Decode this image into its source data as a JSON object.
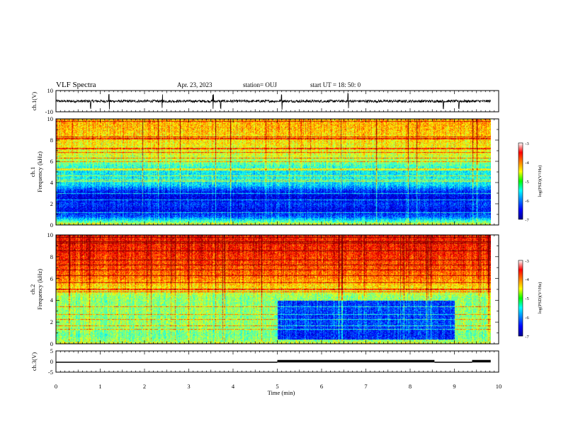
{
  "header": {
    "title": "VLF Spectra",
    "date": "Apr. 23, 2023",
    "station": "station= OUJ",
    "start": "start UT =  18: 50: 0"
  },
  "chart_data": [
    {
      "type": "line",
      "panel": "ch1-waveform",
      "ylabel": "ch.1(V)",
      "ylim": [
        -10,
        10
      ],
      "yticks": [
        "10",
        "-10"
      ],
      "xlim": [
        0,
        10
      ],
      "baseline": 0,
      "noise_amplitude": 1.2,
      "spikes_x": [
        0.78,
        1.2,
        2.4,
        3.55,
        3.72,
        5.1,
        6.6,
        8.75,
        9.1
      ]
    },
    {
      "type": "heatmap",
      "panel": "ch1-spectrogram",
      "ylabel": "ch.1\nFrequency (kHz)",
      "ylim": [
        0,
        10
      ],
      "yticks": [
        "0",
        "2",
        "4",
        "6",
        "8",
        "10"
      ],
      "xlim": [
        0,
        10
      ],
      "value_label": "log(PSD)(V²/Hz)",
      "value_range": [
        -7,
        -3
      ],
      "colorbar_ticks": [
        "-3",
        "-4",
        "-5",
        "-6",
        "-7"
      ],
      "band_levels": [
        {
          "f": 0.2,
          "v": -5.0
        },
        {
          "f": 0.8,
          "v": -6.3
        },
        {
          "f": 1.4,
          "v": -6.8
        },
        {
          "f": 2.0,
          "v": -6.5
        },
        {
          "f": 2.6,
          "v": -6.9
        },
        {
          "f": 3.2,
          "v": -6.6
        },
        {
          "f": 3.8,
          "v": -5.8
        },
        {
          "f": 4.4,
          "v": -5.6
        },
        {
          "f": 5.0,
          "v": -5.7
        },
        {
          "f": 5.6,
          "v": -5.4
        },
        {
          "f": 6.2,
          "v": -4.9
        },
        {
          "f": 6.8,
          "v": -4.7
        },
        {
          "f": 7.4,
          "v": -4.6
        },
        {
          "f": 8.0,
          "v": -4.5
        },
        {
          "f": 8.6,
          "v": -4.4
        },
        {
          "f": 9.2,
          "v": -4.3
        },
        {
          "f": 9.8,
          "v": -4.3
        }
      ]
    },
    {
      "type": "heatmap",
      "panel": "ch2-spectrogram",
      "ylabel": "ch.2\nFrequency (kHz)",
      "ylim": [
        0,
        10
      ],
      "yticks": [
        "0",
        "2",
        "4",
        "6",
        "8",
        "10"
      ],
      "xlim": [
        0,
        10
      ],
      "value_label": "log(PSD)(V²/Hz)",
      "value_range": [
        -7,
        -3
      ],
      "colorbar_ticks": [
        "-3",
        "-4",
        "-5",
        "-6",
        "-7"
      ],
      "band_levels": [
        {
          "f": 0.2,
          "v": -5.0
        },
        {
          "f": 0.8,
          "v": -5.2
        },
        {
          "f": 1.4,
          "v": -5.1
        },
        {
          "f": 2.0,
          "v": -5.0
        },
        {
          "f": 2.6,
          "v": -5.1
        },
        {
          "f": 3.2,
          "v": -5.0
        },
        {
          "f": 3.8,
          "v": -5.1
        },
        {
          "f": 4.4,
          "v": -5.0
        },
        {
          "f": 5.0,
          "v": -4.6
        },
        {
          "f": 5.6,
          "v": -4.3
        },
        {
          "f": 6.2,
          "v": -4.0
        },
        {
          "f": 6.8,
          "v": -3.9
        },
        {
          "f": 7.4,
          "v": -3.8
        },
        {
          "f": 8.0,
          "v": -3.7
        },
        {
          "f": 8.6,
          "v": -3.6
        },
        {
          "f": 9.2,
          "v": -3.6
        },
        {
          "f": 9.8,
          "v": -3.6
        }
      ],
      "quiet_interval_min": [
        5.0,
        9.0
      ],
      "quiet_band_khz": [
        0.4,
        4.0
      ]
    },
    {
      "type": "line",
      "panel": "ch3-signal",
      "ylabel": "ch.3(V)",
      "ylim": [
        -5,
        5
      ],
      "yticks": [
        "5",
        "0",
        "-5"
      ],
      "xlim": [
        0,
        10
      ],
      "xlabel": "Time (min)",
      "xticks": [
        "0",
        "1",
        "2",
        "3",
        "4",
        "5",
        "6",
        "7",
        "8",
        "9",
        "10"
      ],
      "segments": [
        {
          "x0": 0,
          "x1": 5.0,
          "y": 0,
          "thick": false
        },
        {
          "x0": 5.0,
          "x1": 8.55,
          "y": 0,
          "thick": true
        },
        {
          "x0": 8.55,
          "x1": 9.4,
          "y": 0,
          "thick": false
        },
        {
          "x0": 9.4,
          "x1": 9.82,
          "y": 0,
          "thick": true
        }
      ]
    }
  ]
}
